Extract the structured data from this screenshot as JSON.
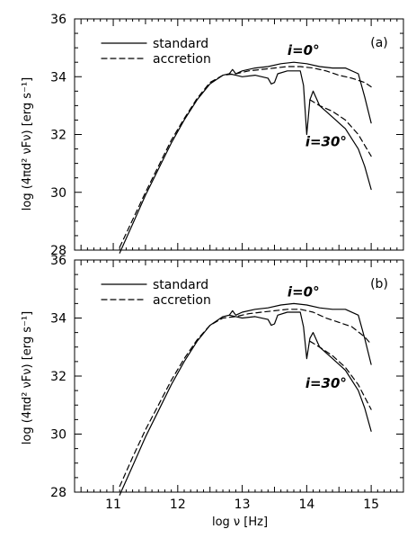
{
  "chart_data": [
    {
      "type": "line",
      "panel_label": "(a)",
      "xlabel": "log ν [Hz]",
      "ylabel": "log (4πd² νFν) [erg s⁻¹]",
      "xlim": [
        10.4,
        15.5
      ],
      "ylim": [
        28,
        36
      ],
      "x_ticks": [
        11,
        12,
        13,
        14,
        15
      ],
      "y_ticks": [
        28,
        30,
        32,
        34,
        36
      ],
      "y_tick_labels": [
        "28",
        "30",
        "32",
        "34",
        "36"
      ],
      "legend": [
        {
          "label": "standard",
          "style": "solid"
        },
        {
          "label": "accretion",
          "style": "dashed"
        }
      ],
      "annotations": [
        {
          "text": "i=0°",
          "x": 13.95,
          "y": 34.75
        },
        {
          "text": "i=30°",
          "x": 14.3,
          "y": 31.6
        }
      ],
      "series": [
        {
          "style": "solid",
          "points": [
            [
              11.1,
              27.9
            ],
            [
              11.3,
              28.9
            ],
            [
              11.5,
              29.9
            ],
            [
              11.7,
              30.8
            ],
            [
              11.9,
              31.7
            ],
            [
              12.1,
              32.5
            ],
            [
              12.3,
              33.2
            ],
            [
              12.5,
              33.75
            ],
            [
              12.7,
              34.05
            ],
            [
              12.8,
              34.1
            ],
            [
              12.85,
              34.25
            ],
            [
              12.9,
              34.1
            ],
            [
              13.0,
              34.2
            ],
            [
              13.2,
              34.3
            ],
            [
              13.4,
              34.35
            ],
            [
              13.6,
              34.45
            ],
            [
              13.8,
              34.5
            ],
            [
              14.0,
              34.45
            ],
            [
              14.2,
              34.35
            ],
            [
              14.4,
              34.3
            ],
            [
              14.6,
              34.3
            ],
            [
              14.8,
              34.1
            ],
            [
              14.9,
              33.3
            ],
            [
              15.0,
              32.4
            ]
          ]
        },
        {
          "style": "solid",
          "points": [
            [
              12.8,
              34.1
            ],
            [
              12.9,
              34.05
            ],
            [
              13.0,
              34.0
            ],
            [
              13.2,
              34.05
            ],
            [
              13.4,
              33.95
            ],
            [
              13.45,
              33.75
            ],
            [
              13.5,
              33.8
            ],
            [
              13.55,
              34.1
            ],
            [
              13.7,
              34.2
            ],
            [
              13.9,
              34.2
            ],
            [
              13.95,
              33.7
            ],
            [
              14.0,
              32.0
            ],
            [
              14.05,
              33.2
            ],
            [
              14.1,
              33.5
            ],
            [
              14.2,
              33.0
            ],
            [
              14.4,
              32.6
            ],
            [
              14.6,
              32.2
            ],
            [
              14.8,
              31.5
            ],
            [
              14.9,
              30.9
            ],
            [
              15.0,
              30.1
            ]
          ]
        },
        {
          "style": "dashed",
          "points": [
            [
              11.1,
              28.1
            ],
            [
              11.3,
              29.05
            ],
            [
              11.5,
              30.0
            ],
            [
              11.7,
              30.9
            ],
            [
              11.9,
              31.8
            ],
            [
              12.1,
              32.55
            ],
            [
              12.3,
              33.25
            ],
            [
              12.5,
              33.8
            ],
            [
              12.7,
              34.05
            ],
            [
              12.9,
              34.1
            ],
            [
              13.1,
              34.2
            ],
            [
              13.3,
              34.25
            ],
            [
              13.5,
              34.3
            ],
            [
              13.7,
              34.35
            ],
            [
              13.9,
              34.35
            ],
            [
              14.1,
              34.3
            ],
            [
              14.3,
              34.2
            ],
            [
              14.5,
              34.05
            ],
            [
              14.7,
              33.95
            ],
            [
              14.9,
              33.8
            ],
            [
              15.0,
              33.65
            ]
          ]
        },
        {
          "style": "dashed",
          "points": [
            [
              14.05,
              33.2
            ],
            [
              14.2,
              33.0
            ],
            [
              14.4,
              32.8
            ],
            [
              14.6,
              32.5
            ],
            [
              14.8,
              32.0
            ],
            [
              15.0,
              31.25
            ]
          ]
        }
      ]
    },
    {
      "type": "line",
      "panel_label": "(b)",
      "xlabel": "log ν [Hz]",
      "ylabel": "log (4πd² νFν) [erg s⁻¹]",
      "xlim": [
        10.4,
        15.5
      ],
      "ylim": [
        28,
        36
      ],
      "x_ticks": [
        11,
        12,
        13,
        14,
        15
      ],
      "x_tick_labels": [
        "11",
        "12",
        "13",
        "14",
        "15"
      ],
      "y_ticks": [
        28,
        30,
        32,
        34,
        36
      ],
      "y_tick_labels": [
        "28",
        "30",
        "32",
        "34",
        "36"
      ],
      "legend": [
        {
          "label": "standard",
          "style": "solid"
        },
        {
          "label": "accretion",
          "style": "dashed"
        }
      ],
      "annotations": [
        {
          "text": "i=0°",
          "x": 13.95,
          "y": 34.75
        },
        {
          "text": "i=30°",
          "x": 14.3,
          "y": 31.6
        }
      ],
      "series": [
        {
          "style": "solid",
          "points": [
            [
              11.1,
              27.9
            ],
            [
              11.3,
              28.9
            ],
            [
              11.5,
              29.9
            ],
            [
              11.7,
              30.8
            ],
            [
              11.9,
              31.7
            ],
            [
              12.1,
              32.5
            ],
            [
              12.3,
              33.2
            ],
            [
              12.5,
              33.75
            ],
            [
              12.7,
              34.05
            ],
            [
              12.8,
              34.1
            ],
            [
              12.85,
              34.25
            ],
            [
              12.9,
              34.1
            ],
            [
              13.0,
              34.2
            ],
            [
              13.2,
              34.3
            ],
            [
              13.4,
              34.35
            ],
            [
              13.6,
              34.45
            ],
            [
              13.8,
              34.5
            ],
            [
              14.0,
              34.45
            ],
            [
              14.2,
              34.35
            ],
            [
              14.4,
              34.3
            ],
            [
              14.6,
              34.3
            ],
            [
              14.8,
              34.1
            ],
            [
              14.9,
              33.3
            ],
            [
              15.0,
              32.4
            ]
          ]
        },
        {
          "style": "solid",
          "points": [
            [
              12.8,
              34.1
            ],
            [
              12.9,
              34.05
            ],
            [
              13.0,
              34.0
            ],
            [
              13.2,
              34.05
            ],
            [
              13.4,
              33.95
            ],
            [
              13.45,
              33.75
            ],
            [
              13.5,
              33.8
            ],
            [
              13.55,
              34.1
            ],
            [
              13.7,
              34.2
            ],
            [
              13.9,
              34.2
            ],
            [
              13.95,
              33.7
            ],
            [
              14.0,
              32.6
            ],
            [
              14.05,
              33.3
            ],
            [
              14.1,
              33.5
            ],
            [
              14.2,
              33.0
            ],
            [
              14.4,
              32.6
            ],
            [
              14.6,
              32.2
            ],
            [
              14.8,
              31.5
            ],
            [
              14.9,
              30.9
            ],
            [
              15.0,
              30.1
            ]
          ]
        },
        {
          "style": "dashed",
          "points": [
            [
              11.1,
              28.2
            ],
            [
              11.3,
              29.2
            ],
            [
              11.5,
              30.15
            ],
            [
              11.7,
              31.0
            ],
            [
              11.9,
              31.85
            ],
            [
              12.1,
              32.6
            ],
            [
              12.3,
              33.25
            ],
            [
              12.5,
              33.75
            ],
            [
              12.7,
              34.0
            ],
            [
              12.9,
              34.05
            ],
            [
              13.1,
              34.15
            ],
            [
              13.3,
              34.2
            ],
            [
              13.5,
              34.25
            ],
            [
              13.7,
              34.3
            ],
            [
              13.9,
              34.3
            ],
            [
              14.1,
              34.2
            ],
            [
              14.3,
              34.0
            ],
            [
              14.5,
              33.85
            ],
            [
              14.7,
              33.7
            ],
            [
              14.9,
              33.35
            ],
            [
              15.0,
              33.1
            ]
          ]
        },
        {
          "style": "dashed",
          "points": [
            [
              14.05,
              33.2
            ],
            [
              14.2,
              33.0
            ],
            [
              14.4,
              32.7
            ],
            [
              14.6,
              32.3
            ],
            [
              14.8,
              31.7
            ],
            [
              15.0,
              30.85
            ]
          ]
        }
      ]
    }
  ]
}
